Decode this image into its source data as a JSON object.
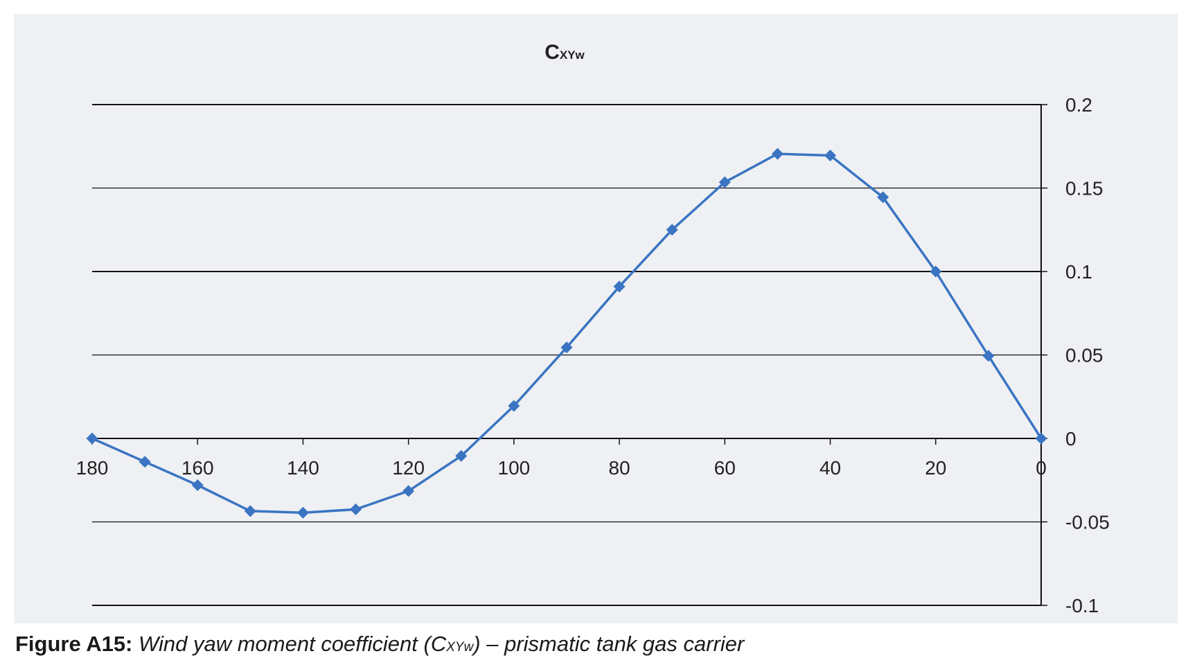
{
  "chart_data": {
    "type": "line",
    "title": "C",
    "title_subscript": "XYw",
    "x": [
      180,
      170,
      160,
      150,
      140,
      130,
      120,
      110,
      100,
      90,
      80,
      70,
      60,
      50,
      40,
      30,
      20,
      10,
      0
    ],
    "series": [
      {
        "values": [
          0,
          -0.014,
          -0.028,
          -0.0435,
          -0.0445,
          -0.0425,
          -0.0315,
          -0.0105,
          0.0195,
          0.0545,
          0.091,
          0.125,
          0.1535,
          0.1705,
          0.1695,
          0.1445,
          0.1,
          0.0495,
          0
        ],
        "color": "#3a74c2",
        "marker": "diamond"
      }
    ],
    "xlim": [
      180,
      0
    ],
    "ylim": [
      -0.1,
      0.2
    ],
    "x_ticks": [
      180,
      160,
      140,
      120,
      100,
      80,
      60,
      40,
      20,
      0
    ],
    "y_ticks": [
      "0.2",
      "0.15",
      "0.1",
      "0.05",
      "0",
      "-0.05",
      "-0.1"
    ],
    "y_axis_side": "right",
    "grid": true
  },
  "caption": {
    "label": "Figure A15:",
    "text_before": "Wind yaw moment coefficient (C",
    "subscript": "XYw",
    "text_after": ") – prismatic tank gas carrier"
  }
}
